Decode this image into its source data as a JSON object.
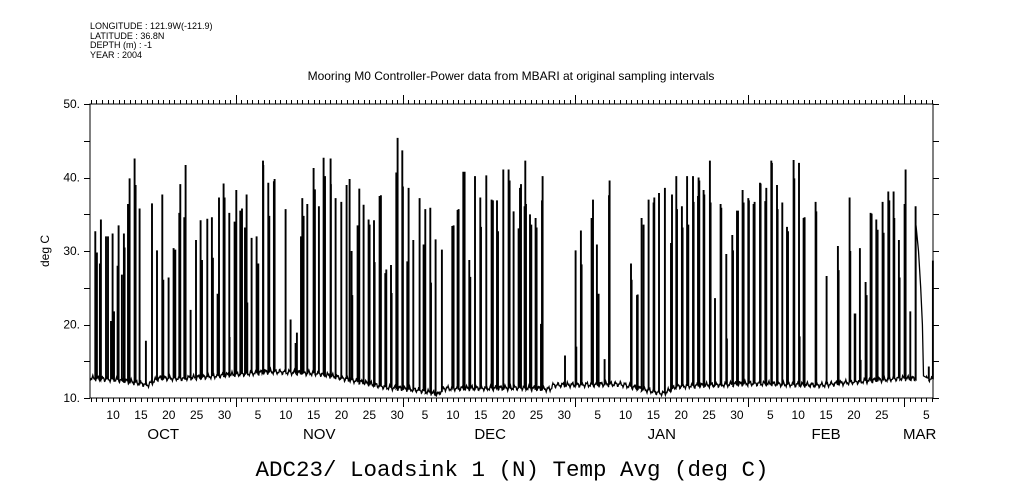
{
  "header": {
    "longitude": "LONGITUDE : 121.9W(-121.9)",
    "latitude": "LATITUDE : 36.8N",
    "depth": "DEPTH (m) : -1",
    "year": "YEAR : 2004"
  },
  "chart_data": {
    "type": "line",
    "title": "Mooring M0 Controller-Power data from MBARI at original sampling intervals",
    "xlabel": "ADC23/ Loadsink 1 (N) Temp Avg (deg C)",
    "ylabel": "deg C",
    "x_units": "days since 2004-10-01",
    "xlim": [
      4.85,
      156.2
    ],
    "ylim": [
      10,
      50
    ],
    "y_ticks": [
      "10.",
      "20.",
      "30.",
      "40.",
      "50."
    ],
    "y_tick_values": [
      10,
      20,
      30,
      40,
      50
    ],
    "month_boundaries": [
      31,
      61,
      92,
      123,
      151
    ],
    "x_tick_labels": [
      {
        "day": 9,
        "label": "10"
      },
      {
        "day": 14,
        "label": "15"
      },
      {
        "day": 19,
        "label": "20"
      },
      {
        "day": 24,
        "label": "25"
      },
      {
        "day": 29,
        "label": "30"
      },
      {
        "day": 35,
        "label": "5"
      },
      {
        "day": 40,
        "label": "10"
      },
      {
        "day": 45,
        "label": "15"
      },
      {
        "day": 50,
        "label": "20"
      },
      {
        "day": 55,
        "label": "25"
      },
      {
        "day": 60,
        "label": "30"
      },
      {
        "day": 65,
        "label": "5"
      },
      {
        "day": 70,
        "label": "10"
      },
      {
        "day": 75,
        "label": "15"
      },
      {
        "day": 80,
        "label": "20"
      },
      {
        "day": 85,
        "label": "25"
      },
      {
        "day": 90,
        "label": "30"
      },
      {
        "day": 96,
        "label": "5"
      },
      {
        "day": 101,
        "label": "10"
      },
      {
        "day": 106,
        "label": "15"
      },
      {
        "day": 111,
        "label": "20"
      },
      {
        "day": 116,
        "label": "25"
      },
      {
        "day": 121,
        "label": "30"
      },
      {
        "day": 127,
        "label": "5"
      },
      {
        "day": 132,
        "label": "10"
      },
      {
        "day": 137,
        "label": "15"
      },
      {
        "day": 142,
        "label": "20"
      },
      {
        "day": 147,
        "label": "25"
      },
      {
        "day": 155,
        "label": "5"
      }
    ],
    "month_labels": [
      {
        "day": 18,
        "label": "OCT"
      },
      {
        "day": 46,
        "label": "NOV"
      },
      {
        "day": 76.7,
        "label": "DEC"
      },
      {
        "day": 107.5,
        "label": "JAN"
      },
      {
        "day": 137,
        "label": "FEB"
      },
      {
        "day": 153.8,
        "label": "MAR"
      }
    ],
    "baseline": [
      [
        4.85,
        12.7
      ],
      [
        9.93,
        12.5
      ],
      [
        15.32,
        11.8
      ],
      [
        17.12,
        12.7
      ],
      [
        21.9,
        12.7
      ],
      [
        37.46,
        13.6
      ],
      [
        45.84,
        13.35
      ],
      [
        51.83,
        12.45
      ],
      [
        57.81,
        11.5
      ],
      [
        63.8,
        11.1
      ],
      [
        67.39,
        10.5
      ],
      [
        68.28,
        11.3
      ],
      [
        82.95,
        11.4
      ],
      [
        87.44,
        11.2
      ],
      [
        88.03,
        11.75
      ],
      [
        100.0,
        11.9
      ],
      [
        107.78,
        10.6
      ],
      [
        110.2,
        11.6
      ],
      [
        115.56,
        11.75
      ],
      [
        123.94,
        12.0
      ],
      [
        135.91,
        11.75
      ],
      [
        141.89,
        12.2
      ],
      [
        150.27,
        12.7
      ],
      [
        156.2,
        12.6
      ]
    ],
    "spikes": [
      [
        5.75,
        32.6
      ],
      [
        6.04,
        29.7
      ],
      [
        6.58,
        28.2
      ],
      [
        6.76,
        34.2
      ],
      [
        7.66,
        31.9
      ],
      [
        8.02,
        31.9
      ],
      [
        8.56,
        20.4
      ],
      [
        8.86,
        32.3
      ],
      [
        9.1,
        21.7
      ],
      [
        9.75,
        27.9
      ],
      [
        9.93,
        33.4
      ],
      [
        10.53,
        26.7
      ],
      [
        10.89,
        32.3
      ],
      [
        11.01,
        30.4
      ],
      [
        11.61,
        36.3
      ],
      [
        11.91,
        39.8
      ],
      [
        12.81,
        42.5
      ],
      [
        12.99,
        38.9
      ],
      [
        13.7,
        35.7
      ],
      [
        14.84,
        17.7
      ],
      [
        15.92,
        36.4
      ],
      [
        16.82,
        30.0
      ],
      [
        17.77,
        37.6
      ],
      [
        17.95,
        26.0
      ],
      [
        18.91,
        26.3
      ],
      [
        19.81,
        30.3
      ],
      [
        20.11,
        30.1
      ],
      [
        20.83,
        35.1
      ],
      [
        21.0,
        39.0
      ],
      [
        21.72,
        34.5
      ],
      [
        21.96,
        41.6
      ],
      [
        22.86,
        21.9
      ],
      [
        23.82,
        31.4
      ],
      [
        24.66,
        34.1
      ],
      [
        24.9,
        28.7
      ],
      [
        25.85,
        34.3
      ],
      [
        26.69,
        34.5
      ],
      [
        26.87,
        29.0
      ],
      [
        27.71,
        24.1
      ],
      [
        27.95,
        37.2
      ],
      [
        28.79,
        39.1
      ],
      [
        28.96,
        37.2
      ],
      [
        29.8,
        35.1
      ],
      [
        29.86,
        18.2
      ],
      [
        30.76,
        33.9
      ],
      [
        31.06,
        38.2
      ],
      [
        31.78,
        35.4
      ],
      [
        32.08,
        35.7
      ],
      [
        32.62,
        33.1
      ],
      [
        32.91,
        37.6
      ],
      [
        33.03,
        22.9
      ],
      [
        33.81,
        31.7
      ],
      [
        34.71,
        31.9
      ],
      [
        35.01,
        28.2
      ],
      [
        35.85,
        42.2
      ],
      [
        35.91,
        41.6
      ],
      [
        36.8,
        39.2
      ],
      [
        36.98,
        34.7
      ],
      [
        37.82,
        39.4
      ],
      [
        37.94,
        39.7
      ],
      [
        39.92,
        35.6
      ],
      [
        40.81,
        20.6
      ],
      [
        41.71,
        17.4
      ],
      [
        41.95,
        18.8
      ],
      [
        42.67,
        31.9
      ],
      [
        42.91,
        37.1
      ],
      [
        43.15,
        34.7
      ],
      [
        43.81,
        36.3
      ],
      [
        44.94,
        41.2
      ],
      [
        45.18,
        38.3
      ],
      [
        45.9,
        36.0
      ],
      [
        46.74,
        42.6
      ],
      [
        46.98,
        40.1
      ],
      [
        48.0,
        42.5
      ],
      [
        48.05,
        39.0
      ],
      [
        48.89,
        37.1
      ],
      [
        49.91,
        36.6
      ],
      [
        50.87,
        38.9
      ],
      [
        51.41,
        39.7
      ],
      [
        51.77,
        29.9
      ],
      [
        51.89,
        23.9
      ],
      [
        52.84,
        33.4
      ],
      [
        53.14,
        38.4
      ],
      [
        53.92,
        36.2
      ],
      [
        54.82,
        34.2
      ],
      [
        55.0,
        33.5
      ],
      [
        55.78,
        34.1
      ],
      [
        55.9,
        28.4
      ],
      [
        56.79,
        37.4
      ],
      [
        57.03,
        37.5
      ],
      [
        57.81,
        26.9
      ],
      [
        57.99,
        27.4
      ],
      [
        58.83,
        28.0
      ],
      [
        58.95,
        24.2
      ],
      [
        59.78,
        40.6
      ],
      [
        60.02,
        45.3
      ],
      [
        60.86,
        43.6
      ],
      [
        60.98,
        38.7
      ],
      [
        61.76,
        28.5
      ],
      [
        62.0,
        38.5
      ],
      [
        62.84,
        31.4
      ],
      [
        63.97,
        37.1
      ],
      [
        64.69,
        30.8
      ],
      [
        64.99,
        35.6
      ],
      [
        65.89,
        35.8
      ],
      [
        66.01,
        25.6
      ],
      [
        66.85,
        31.5
      ],
      [
        67.98,
        30.1
      ],
      [
        69.84,
        33.3
      ],
      [
        70.08,
        33.4
      ],
      [
        70.8,
        35.5
      ],
      [
        70.97,
        35.6
      ],
      [
        71.81,
        40.7
      ],
      [
        72.05,
        40.7
      ],
      [
        72.89,
        28.7
      ],
      [
        73.07,
        26.4
      ],
      [
        73.91,
        40.1
      ],
      [
        74.87,
        37.2
      ],
      [
        74.99,
        33.2
      ],
      [
        75.94,
        40.2
      ],
      [
        76.9,
        36.9
      ],
      [
        77.14,
        36.8
      ],
      [
        77.86,
        36.8
      ],
      [
        78.04,
        32.6
      ],
      [
        78.99,
        41.0
      ],
      [
        79.95,
        41.0
      ],
      [
        80.13,
        39.5
      ],
      [
        80.85,
        35.3
      ],
      [
        81.75,
        33.0
      ],
      [
        81.99,
        38.5
      ],
      [
        82.17,
        39.0
      ],
      [
        82.82,
        36.0
      ],
      [
        82.95,
        42.2
      ],
      [
        83.07,
        36.3
      ],
      [
        83.79,
        34.9
      ],
      [
        84.02,
        33.5
      ],
      [
        84.8,
        34.4
      ],
      [
        84.98,
        33.1
      ],
      [
        85.76,
        20.0
      ],
      [
        85.94,
        36.8
      ],
      [
        86.06,
        40.1
      ],
      [
        90.07,
        15.7
      ],
      [
        91.98,
        30.0
      ],
      [
        92.1,
        16.9
      ],
      [
        92.94,
        32.7
      ],
      [
        93.06,
        28.1
      ],
      [
        94.86,
        34.4
      ],
      [
        95.1,
        36.9
      ],
      [
        95.81,
        30.8
      ],
      [
        96.11,
        24.1
      ],
      [
        97.19,
        15.2
      ],
      [
        97.97,
        37.5
      ],
      [
        98.09,
        39.5
      ],
      [
        101.92,
        28.2
      ],
      [
        102.04,
        26.0
      ],
      [
        103.0,
        23.9
      ],
      [
        103.12,
        24.0
      ],
      [
        103.83,
        34.4
      ],
      [
        104.19,
        33.5
      ],
      [
        105.09,
        36.9
      ],
      [
        105.99,
        36.5
      ],
      [
        106.11,
        37.2
      ],
      [
        106.95,
        37.8
      ],
      [
        108.02,
        38.5
      ],
      [
        109.1,
        31.0
      ],
      [
        109.28,
        37.6
      ],
      [
        110.06,
        40.1
      ],
      [
        110.18,
        35.6
      ],
      [
        111.07,
        36.0
      ],
      [
        111.19,
        33.1
      ],
      [
        111.99,
        40.1
      ],
      [
        112.21,
        33.5
      ],
      [
        113.05,
        40.1
      ],
      [
        113.17,
        36.6
      ],
      [
        113.95,
        37.4
      ],
      [
        114.07,
        39.9
      ],
      [
        114.19,
        39.5
      ],
      [
        114.96,
        38.2
      ],
      [
        115.08,
        37.6
      ],
      [
        116.1,
        42.2
      ],
      [
        116.22,
        36.5
      ],
      [
        117.0,
        23.5
      ],
      [
        118.02,
        36.3
      ],
      [
        118.14,
        35.8
      ],
      [
        119.03,
        29.5
      ],
      [
        119.15,
        18.0
      ],
      [
        120.11,
        32.1
      ],
      [
        120.23,
        30.0
      ],
      [
        120.95,
        35.4
      ],
      [
        121.13,
        35.4
      ],
      [
        121.97,
        38.2
      ],
      [
        122.15,
        36.5
      ],
      [
        122.98,
        37.1
      ],
      [
        123.1,
        36.8
      ],
      [
        123.94,
        36.3
      ],
      [
        124.12,
        36.6
      ],
      [
        125.08,
        39.2
      ],
      [
        125.2,
        39.1
      ],
      [
        126.04,
        36.7
      ],
      [
        126.22,
        38.5
      ],
      [
        127.11,
        42.2
      ],
      [
        127.23,
        41.9
      ],
      [
        128.13,
        38.9
      ],
      [
        128.25,
        35.6
      ],
      [
        129.09,
        36.5
      ],
      [
        129.93,
        33.2
      ],
      [
        130.11,
        32.6
      ],
      [
        131.12,
        42.3
      ],
      [
        131.24,
        39.8
      ],
      [
        132.08,
        41.9
      ],
      [
        132.2,
        18.3
      ],
      [
        132.92,
        34.4
      ],
      [
        133.1,
        34.5
      ],
      [
        135.07,
        36.6
      ],
      [
        135.19,
        35.3
      ],
      [
        137.05,
        26.5
      ],
      [
        139.08,
        30.6
      ],
      [
        139.2,
        27.3
      ],
      [
        141.18,
        37.2
      ],
      [
        141.3,
        29.9
      ],
      [
        142.08,
        21.4
      ],
      [
        142.2,
        21.4
      ],
      [
        143.03,
        30.3
      ],
      [
        143.15,
        15.1
      ],
      [
        144.05,
        25.7
      ],
      [
        144.23,
        23.9
      ],
      [
        144.95,
        35.1
      ],
      [
        145.13,
        35.0
      ],
      [
        145.96,
        34.2
      ],
      [
        146.2,
        32.8
      ],
      [
        147.1,
        36.6
      ],
      [
        147.28,
        32.4
      ],
      [
        148.12,
        38.0
      ],
      [
        148.3,
        36.8
      ],
      [
        149.07,
        38.0
      ],
      [
        149.19,
        34.4
      ],
      [
        150.03,
        31.4
      ],
      [
        150.15,
        26.3
      ],
      [
        151.05,
        36.3
      ],
      [
        151.23,
        41.0
      ],
      [
        152.07,
        21.7
      ],
      [
        153.03,
        36.0
      ],
      [
        155.4,
        14.2
      ],
      [
        156.13,
        28.6
      ]
    ],
    "tail": [
      [
        153.15,
        33.5
      ],
      [
        153.6,
        30.0
      ],
      [
        154.0,
        25.0
      ],
      [
        154.3,
        20.0
      ],
      [
        154.5,
        13.0
      ],
      [
        155.0,
        12.8
      ]
    ]
  }
}
